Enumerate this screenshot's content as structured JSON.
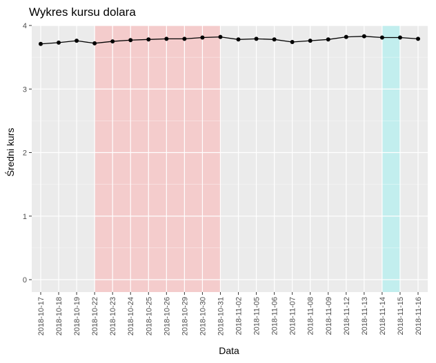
{
  "chart_data": {
    "type": "line",
    "title": "Wykres kursu dolara",
    "xlabel": "Data",
    "ylabel": "Średni kurs",
    "ylim": [
      -0.2,
      4.0
    ],
    "yticks": [
      0,
      1,
      2,
      3,
      4
    ],
    "grid": true,
    "x": [
      "2018-10-17",
      "2018-10-18",
      "2018-10-19",
      "2018-10-22",
      "2018-10-23",
      "2018-10-24",
      "2018-10-25",
      "2018-10-26",
      "2018-10-29",
      "2018-10-30",
      "2018-10-31",
      "2018-11-02",
      "2018-11-05",
      "2018-11-06",
      "2018-11-07",
      "2018-11-08",
      "2018-11-09",
      "2018-11-12",
      "2018-11-13",
      "2018-11-14",
      "2018-11-15",
      "2018-11-16"
    ],
    "values": [
      3.71,
      3.73,
      3.76,
      3.72,
      3.75,
      3.77,
      3.78,
      3.79,
      3.79,
      3.81,
      3.82,
      3.78,
      3.79,
      3.78,
      3.74,
      3.76,
      3.78,
      3.82,
      3.83,
      3.81,
      3.81,
      3.79
    ],
    "shaded_ranges": [
      {
        "from": "2018-10-22",
        "to": "2018-10-31",
        "color": "#f4cccc"
      },
      {
        "from": "2018-11-14",
        "to": "2018-11-15",
        "color": "#c2eeee"
      }
    ],
    "colors": {
      "panel": "#ebebeb",
      "grid": "#ffffff",
      "line": "#000000",
      "point": "#000000"
    }
  }
}
